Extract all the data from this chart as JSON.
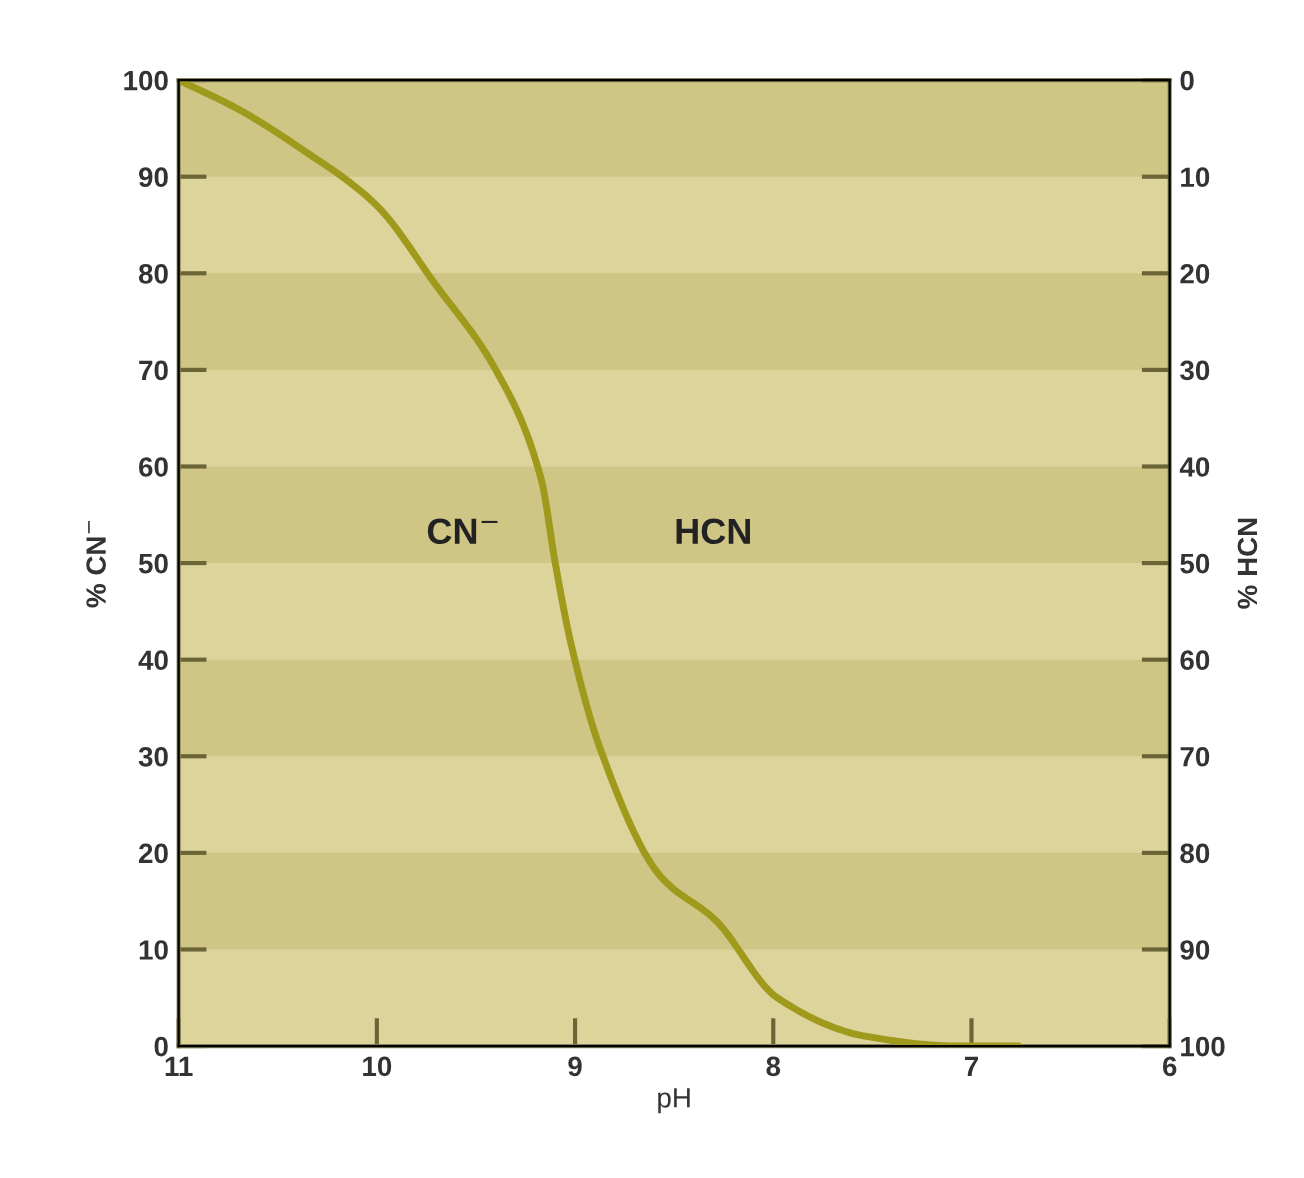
{
  "chart_data": {
    "type": "line",
    "xlabel": "pH",
    "ylabel": "% CN$^{−}$",
    "y2label": "% HCN",
    "x": [
      11,
      10.7,
      10.39,
      10.0,
      9.71,
      9.4,
      9.17,
      9.1,
      9.02,
      8.87,
      8.57,
      8.29,
      7.98,
      7.53,
      7.07,
      6.77
    ],
    "series": [
      {
        "color": "#a09a1c",
        "values": [
          100,
          97,
          93,
          87,
          79,
          70,
          58.6,
          50,
          41.6,
          30.6,
          17.6,
          13,
          5,
          1,
          0,
          0
        ]
      }
    ],
    "xlim": [
      11,
      6
    ],
    "xticks": [
      11,
      10,
      9,
      8,
      7,
      6
    ],
    "ylim": [
      0,
      100
    ],
    "yticks": [
      0,
      10,
      20,
      30,
      40,
      50,
      60,
      70,
      80,
      90,
      100
    ],
    "y2lim": [
      100,
      0
    ],
    "y2ticks": [
      0,
      10,
      20,
      30,
      40,
      50,
      60,
      70,
      80,
      90,
      100
    ],
    "bands": [
      {
        "axis": "y",
        "from": 90,
        "to": 100,
        "color": "#cfc584"
      },
      {
        "axis": "y",
        "from": 70,
        "to": 80,
        "color": "#cfc584"
      },
      {
        "axis": "y",
        "from": 50,
        "to": 60,
        "color": "#cfc584"
      },
      {
        "axis": "y",
        "from": 30,
        "to": 40,
        "color": "#cfc584"
      },
      {
        "axis": "y",
        "from": 10,
        "to": 20,
        "color": "#cfc584"
      }
    ],
    "annotations": [
      "CN$^{−}$",
      "HCN"
    ],
    "grid": false,
    "legend": false,
    "marker": "none",
    "line_style": "solid"
  }
}
